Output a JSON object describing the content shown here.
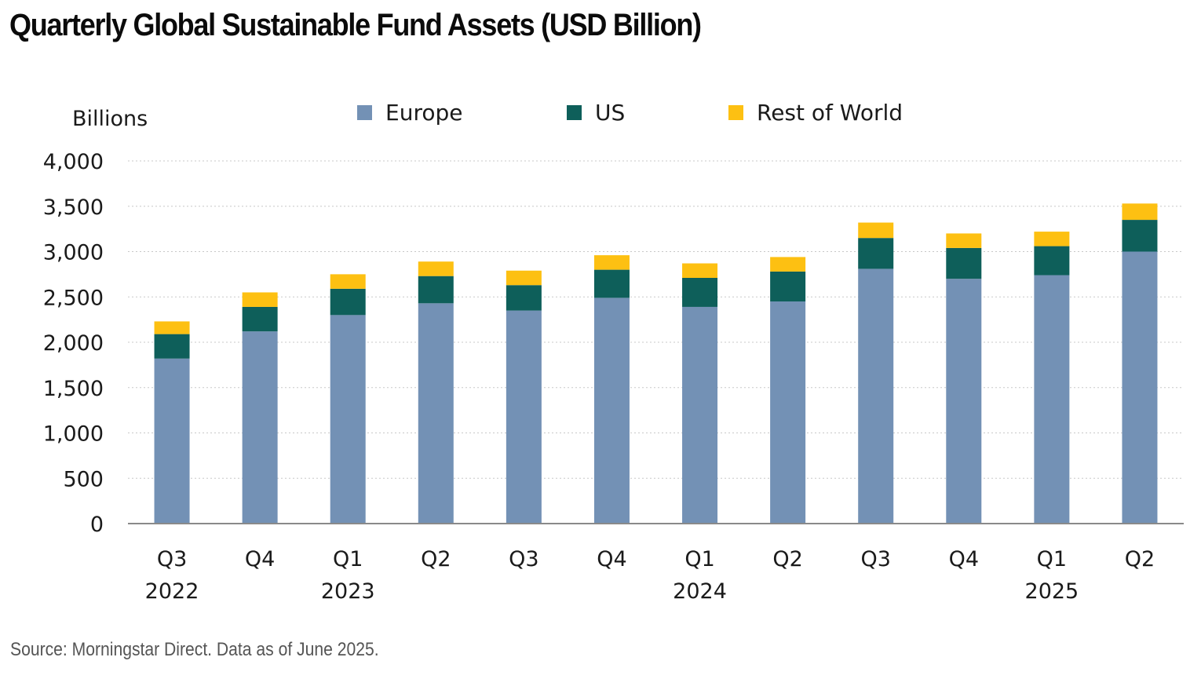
{
  "title": "Quarterly Global Sustainable Fund Assets (USD Billion)",
  "source": "Source: Morningstar Direct. Data as of June 2025.",
  "chart_data": {
    "type": "bar",
    "stacked": true,
    "ylabel": "Billions",
    "xlabel": "",
    "ylim": [
      0,
      4000
    ],
    "yticks": [
      0,
      500,
      1000,
      1500,
      2000,
      2500,
      3000,
      3500,
      4000
    ],
    "ytick_labels": [
      "0",
      "500",
      "1,000",
      "1,500",
      "2,000",
      "2,500",
      "3,000",
      "3,500",
      "4,000"
    ],
    "grid": true,
    "legend_position": "top",
    "categories": [
      "Q3",
      "Q4",
      "Q1",
      "Q2",
      "Q3",
      "Q4",
      "Q1",
      "Q2",
      "Q3",
      "Q4",
      "Q1",
      "Q2"
    ],
    "year_labels": [
      {
        "index": 0,
        "label": "2022"
      },
      {
        "index": 2,
        "label": "2023"
      },
      {
        "index": 6,
        "label": "2024"
      },
      {
        "index": 10,
        "label": "2025"
      }
    ],
    "series": [
      {
        "name": "Europe",
        "color": "#7391b5",
        "values": [
          1820,
          2120,
          2300,
          2430,
          2350,
          2490,
          2390,
          2450,
          2810,
          2700,
          2740,
          3000
        ]
      },
      {
        "name": "US",
        "color": "#0e5f5a",
        "values": [
          270,
          270,
          290,
          300,
          280,
          310,
          320,
          330,
          340,
          340,
          320,
          350
        ]
      },
      {
        "name": "Rest of World",
        "color": "#fdc012",
        "values": [
          140,
          160,
          160,
          160,
          160,
          160,
          160,
          160,
          170,
          160,
          160,
          180
        ]
      }
    ]
  }
}
